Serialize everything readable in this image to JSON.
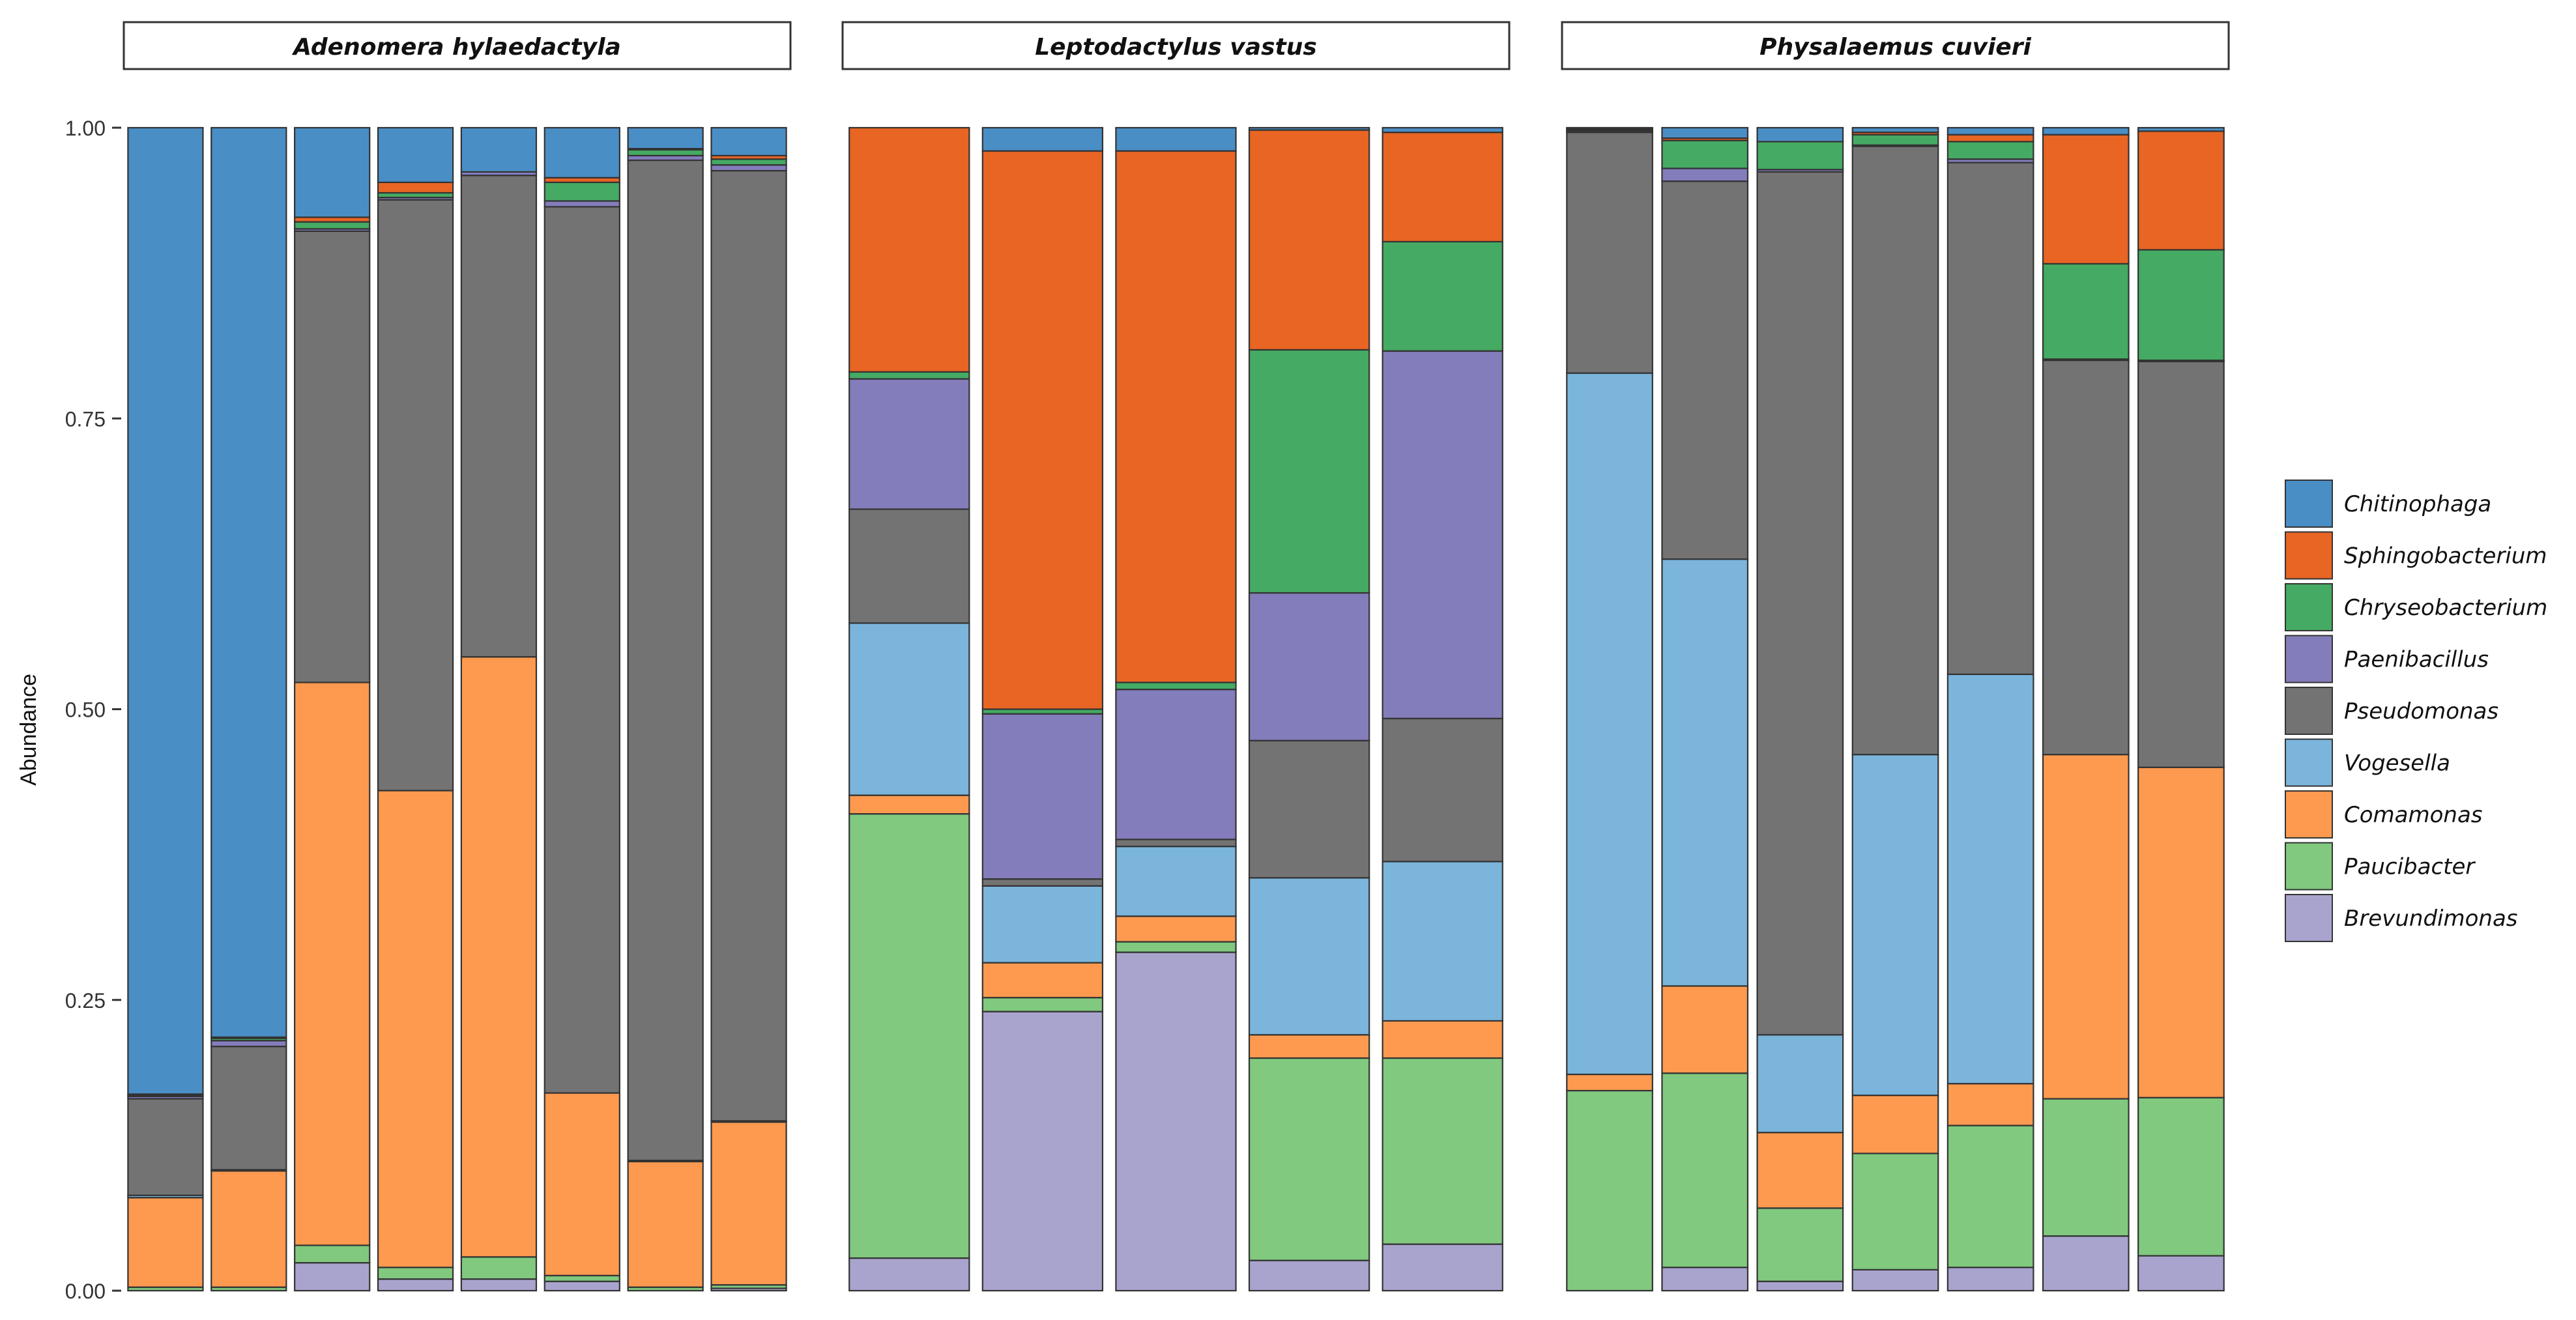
{
  "chart_data": {
    "type": "bar",
    "stacked": true,
    "title": "",
    "xlabel": "",
    "ylabel": "Abundance",
    "ylim": [
      0,
      1
    ],
    "yticks": [
      "0.00",
      "0.25",
      "0.50",
      "0.75",
      "1.00"
    ],
    "legend_position": "right",
    "taxa": [
      {
        "name": "Chitinophaga",
        "color": "#4A8EC6"
      },
      {
        "name": "Sphingobacterium",
        "color": "#E86524"
      },
      {
        "name": "Chryseobacterium",
        "color": "#45AA63"
      },
      {
        "name": "Paenibacillus",
        "color": "#837DBB"
      },
      {
        "name": "Pseudomonas",
        "color": "#737373"
      },
      {
        "name": "Vogesella",
        "color": "#7BB5DC"
      },
      {
        "name": "Comamonas",
        "color": "#FD9A4F"
      },
      {
        "name": "Paucibacter",
        "color": "#80C97F"
      },
      {
        "name": "Brevundimonas",
        "color": "#A9A4CD"
      }
    ],
    "stack_order_bottom_to_top": [
      "Brevundimonas",
      "Paucibacter",
      "Comamonas",
      "Vogesella",
      "Pseudomonas",
      "Paenibacillus",
      "Chryseobacterium",
      "Sphingobacterium",
      "Chitinophaga"
    ],
    "panels": [
      {
        "label": "Adenomera hylaedactyla",
        "samples": [
          {
            "Brevundimonas": 0.0,
            "Paucibacter": 0.003,
            "Comamonas": 0.077,
            "Vogesella": 0.002,
            "Pseudomonas": 0.083,
            "Paenibacillus": 0.002,
            "Chryseobacterium": 0.001,
            "Sphingobacterium": 0.001,
            "Chitinophaga": 0.831
          },
          {
            "Brevundimonas": 0.0,
            "Paucibacter": 0.003,
            "Comamonas": 0.1,
            "Vogesella": 0.001,
            "Pseudomonas": 0.106,
            "Paenibacillus": 0.005,
            "Chryseobacterium": 0.002,
            "Sphingobacterium": 0.001,
            "Chitinophaga": 0.782
          },
          {
            "Brevundimonas": 0.024,
            "Paucibacter": 0.015,
            "Comamonas": 0.484,
            "Vogesella": 0.0,
            "Pseudomonas": 0.388,
            "Paenibacillus": 0.002,
            "Chryseobacterium": 0.006,
            "Sphingobacterium": 0.004,
            "Chitinophaga": 0.077
          },
          {
            "Brevundimonas": 0.01,
            "Paucibacter": 0.01,
            "Comamonas": 0.41,
            "Vogesella": 0.0,
            "Pseudomonas": 0.508,
            "Paenibacillus": 0.002,
            "Chryseobacterium": 0.004,
            "Sphingobacterium": 0.009,
            "Chitinophaga": 0.047
          },
          {
            "Brevundimonas": 0.01,
            "Paucibacter": 0.019,
            "Comamonas": 0.516,
            "Vogesella": 0.0,
            "Pseudomonas": 0.414,
            "Paenibacillus": 0.003,
            "Chryseobacterium": 0.0,
            "Sphingobacterium": 0.0,
            "Chitinophaga": 0.038
          },
          {
            "Brevundimonas": 0.008,
            "Paucibacter": 0.005,
            "Comamonas": 0.157,
            "Vogesella": 0.0,
            "Pseudomonas": 0.762,
            "Paenibacillus": 0.005,
            "Chryseobacterium": 0.016,
            "Sphingobacterium": 0.004,
            "Chitinophaga": 0.043
          },
          {
            "Brevundimonas": 0.0,
            "Paucibacter": 0.003,
            "Comamonas": 0.108,
            "Vogesella": 0.001,
            "Pseudomonas": 0.86,
            "Paenibacillus": 0.004,
            "Chryseobacterium": 0.005,
            "Sphingobacterium": 0.001,
            "Chitinophaga": 0.018
          },
          {
            "Brevundimonas": 0.002,
            "Paucibacter": 0.003,
            "Comamonas": 0.14,
            "Vogesella": 0.001,
            "Pseudomonas": 0.817,
            "Paenibacillus": 0.005,
            "Chryseobacterium": 0.005,
            "Sphingobacterium": 0.003,
            "Chitinophaga": 0.024
          }
        ]
      },
      {
        "label": "Leptodactylus vastus",
        "samples": [
          {
            "Brevundimonas": 0.028,
            "Paucibacter": 0.382,
            "Comamonas": 0.016,
            "Vogesella": 0.148,
            "Pseudomonas": 0.098,
            "Paenibacillus": 0.112,
            "Chryseobacterium": 0.006,
            "Sphingobacterium": 0.21,
            "Chitinophaga": 0.0
          },
          {
            "Brevundimonas": 0.24,
            "Paucibacter": 0.012,
            "Comamonas": 0.03,
            "Vogesella": 0.066,
            "Pseudomonas": 0.006,
            "Paenibacillus": 0.142,
            "Chryseobacterium": 0.004,
            "Sphingobacterium": 0.48,
            "Chitinophaga": 0.02
          },
          {
            "Brevundimonas": 0.291,
            "Paucibacter": 0.009,
            "Comamonas": 0.022,
            "Vogesella": 0.06,
            "Pseudomonas": 0.006,
            "Paenibacillus": 0.129,
            "Chryseobacterium": 0.006,
            "Sphingobacterium": 0.457,
            "Chitinophaga": 0.02
          },
          {
            "Brevundimonas": 0.026,
            "Paucibacter": 0.174,
            "Comamonas": 0.02,
            "Vogesella": 0.135,
            "Pseudomonas": 0.118,
            "Paenibacillus": 0.127,
            "Chryseobacterium": 0.209,
            "Sphingobacterium": 0.189,
            "Chitinophaga": 0.002
          },
          {
            "Brevundimonas": 0.04,
            "Paucibacter": 0.16,
            "Comamonas": 0.032,
            "Vogesella": 0.137,
            "Pseudomonas": 0.123,
            "Paenibacillus": 0.316,
            "Chryseobacterium": 0.094,
            "Sphingobacterium": 0.094,
            "Chitinophaga": 0.004
          }
        ]
      },
      {
        "label": "Physalaemus cuvieri",
        "samples": [
          {
            "Brevundimonas": 0.0,
            "Paucibacter": 0.172,
            "Comamonas": 0.014,
            "Vogesella": 0.603,
            "Pseudomonas": 0.207,
            "Paenibacillus": 0.001,
            "Chryseobacterium": 0.001,
            "Sphingobacterium": 0.001,
            "Chitinophaga": 0.001
          },
          {
            "Brevundimonas": 0.02,
            "Paucibacter": 0.167,
            "Comamonas": 0.075,
            "Vogesella": 0.367,
            "Pseudomonas": 0.325,
            "Paenibacillus": 0.011,
            "Chryseobacterium": 0.024,
            "Sphingobacterium": 0.002,
            "Chitinophaga": 0.009
          },
          {
            "Brevundimonas": 0.008,
            "Paucibacter": 0.063,
            "Comamonas": 0.065,
            "Vogesella": 0.084,
            "Pseudomonas": 0.742,
            "Paenibacillus": 0.002,
            "Chryseobacterium": 0.024,
            "Sphingobacterium": 0.0,
            "Chitinophaga": 0.012
          },
          {
            "Brevundimonas": 0.018,
            "Paucibacter": 0.1,
            "Comamonas": 0.05,
            "Vogesella": 0.293,
            "Pseudomonas": 0.523,
            "Paenibacillus": 0.001,
            "Chryseobacterium": 0.009,
            "Sphingobacterium": 0.002,
            "Chitinophaga": 0.004
          },
          {
            "Brevundimonas": 0.02,
            "Paucibacter": 0.122,
            "Comamonas": 0.036,
            "Vogesella": 0.352,
            "Pseudomonas": 0.44,
            "Paenibacillus": 0.003,
            "Chryseobacterium": 0.015,
            "Sphingobacterium": 0.006,
            "Chitinophaga": 0.006
          },
          {
            "Brevundimonas": 0.047,
            "Paucibacter": 0.118,
            "Comamonas": 0.296,
            "Vogesella": 0.0,
            "Pseudomonas": 0.339,
            "Paenibacillus": 0.001,
            "Chryseobacterium": 0.082,
            "Sphingobacterium": 0.111,
            "Chitinophaga": 0.006
          },
          {
            "Brevundimonas": 0.03,
            "Paucibacter": 0.136,
            "Comamonas": 0.284,
            "Vogesella": 0.0,
            "Pseudomonas": 0.349,
            "Paenibacillus": 0.001,
            "Chryseobacterium": 0.095,
            "Sphingobacterium": 0.102,
            "Chitinophaga": 0.003
          }
        ]
      }
    ]
  }
}
